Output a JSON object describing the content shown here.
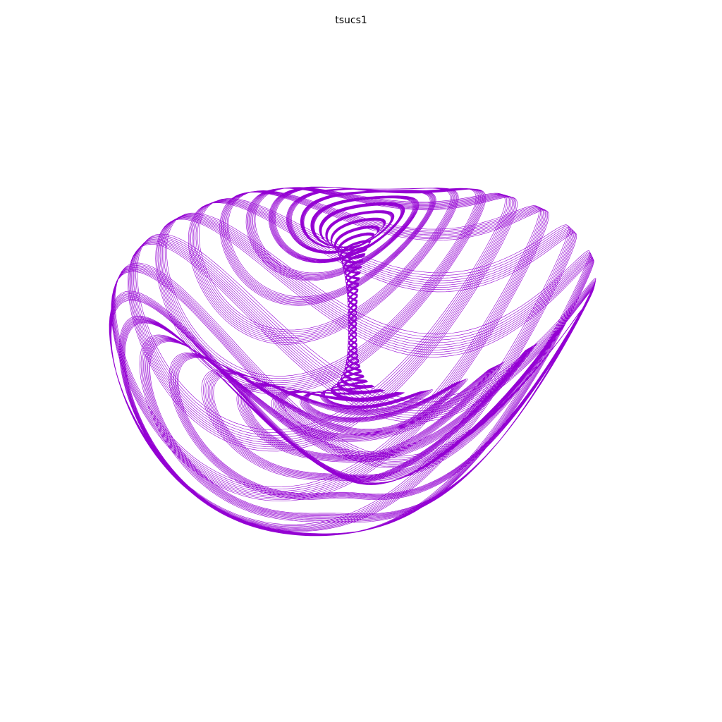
{
  "title": "tsucs1",
  "line_color": "#9400d3"
}
